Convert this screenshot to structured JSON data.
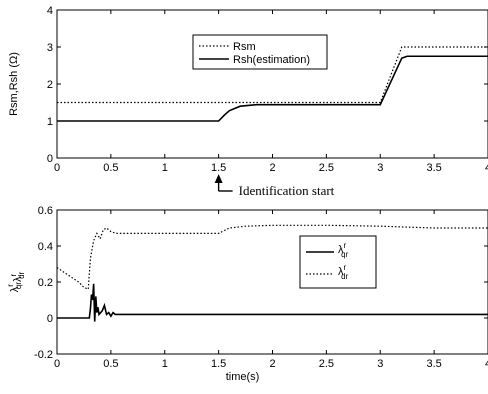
{
  "chart_data": [
    {
      "type": "line",
      "ylabel": "Rsm,Rsh  (Ω)",
      "xlim": [
        0,
        4
      ],
      "ylim": [
        0,
        4
      ],
      "xticks": [
        "0",
        "0.5",
        "1",
        "1.5",
        "2",
        "2.5",
        "3",
        "3.5",
        "4"
      ],
      "yticks": [
        "0",
        "1",
        "2",
        "3",
        "4"
      ],
      "legend_position": "upper-center",
      "series": [
        {
          "name": "Rsm",
          "style": "dotted",
          "points": [
            [
              0,
              1.5
            ],
            [
              1.5,
              1.5
            ],
            [
              3.0,
              1.5
            ],
            [
              3.2,
              3.0
            ],
            [
              4.0,
              3.0
            ]
          ]
        },
        {
          "name": "Rsh(estimation)",
          "style": "solid",
          "points": [
            [
              0,
              1.0
            ],
            [
              1.5,
              1.0
            ],
            [
              1.55,
              1.15
            ],
            [
              1.6,
              1.28
            ],
            [
              1.7,
              1.4
            ],
            [
              1.85,
              1.44
            ],
            [
              3.0,
              1.44
            ],
            [
              3.2,
              2.7
            ],
            [
              3.25,
              2.75
            ],
            [
              4.0,
              2.75
            ]
          ]
        }
      ],
      "annotation": {
        "text": "Identification start",
        "x": 1.5
      }
    },
    {
      "type": "line",
      "xlabel": "time(s)",
      "xlim": [
        0,
        4
      ],
      "ylim": [
        -0.2,
        0.6
      ],
      "xticks": [
        "0",
        "0.5",
        "1",
        "1.5",
        "2",
        "2.5",
        "3",
        "3.5",
        "4"
      ],
      "yticks": [
        "-0.2",
        "0",
        "0.2",
        "0.4",
        "0.6"
      ],
      "legend_position": "center-right",
      "series": [
        {
          "name": "λ qr r",
          "label_main": "λ",
          "label_sup": "r",
          "label_sub": "qr",
          "style": "solid",
          "points": [
            [
              0,
              0
            ],
            [
              0.3,
              0
            ],
            [
              0.31,
              0.05
            ],
            [
              0.32,
              0.13
            ],
            [
              0.33,
              0.1
            ],
            [
              0.34,
              0.19
            ],
            [
              0.35,
              -0.02
            ],
            [
              0.36,
              0.12
            ],
            [
              0.37,
              0.03
            ],
            [
              0.38,
              0.06
            ],
            [
              0.39,
              0.02
            ],
            [
              0.42,
              0.04
            ],
            [
              0.44,
              0.07
            ],
            [
              0.46,
              0.02
            ],
            [
              0.48,
              0.03
            ],
            [
              0.5,
              0.01
            ],
            [
              0.52,
              0.03
            ],
            [
              0.54,
              0.02
            ],
            [
              0.6,
              0.02
            ],
            [
              1.5,
              0.02
            ],
            [
              4.0,
              0.02
            ]
          ]
        },
        {
          "name": "λ dr r",
          "label_main": "λ",
          "label_sup": "r",
          "label_sub": "dr",
          "style": "dotted",
          "points": [
            [
              0,
              0.28
            ],
            [
              0.05,
              0.26
            ],
            [
              0.1,
              0.24
            ],
            [
              0.15,
              0.22
            ],
            [
              0.2,
              0.2
            ],
            [
              0.25,
              0.17
            ],
            [
              0.29,
              0.16
            ],
            [
              0.31,
              0.33
            ],
            [
              0.34,
              0.43
            ],
            [
              0.37,
              0.47
            ],
            [
              0.4,
              0.44
            ],
            [
              0.43,
              0.49
            ],
            [
              0.46,
              0.5
            ],
            [
              0.5,
              0.48
            ],
            [
              0.55,
              0.47
            ],
            [
              0.6,
              0.47
            ],
            [
              1.0,
              0.47
            ],
            [
              1.5,
              0.47
            ],
            [
              1.6,
              0.5
            ],
            [
              1.75,
              0.51
            ],
            [
              2.0,
              0.515
            ],
            [
              2.5,
              0.515
            ],
            [
              3.0,
              0.51
            ],
            [
              3.5,
              0.5
            ],
            [
              4.0,
              0.5
            ]
          ]
        }
      ],
      "ylabel_parts": [
        {
          "main": "λ",
          "sup": "r",
          "sub": "qr"
        },
        {
          "main": "λ",
          "sup": "r",
          "sub": "dr"
        }
      ]
    }
  ]
}
